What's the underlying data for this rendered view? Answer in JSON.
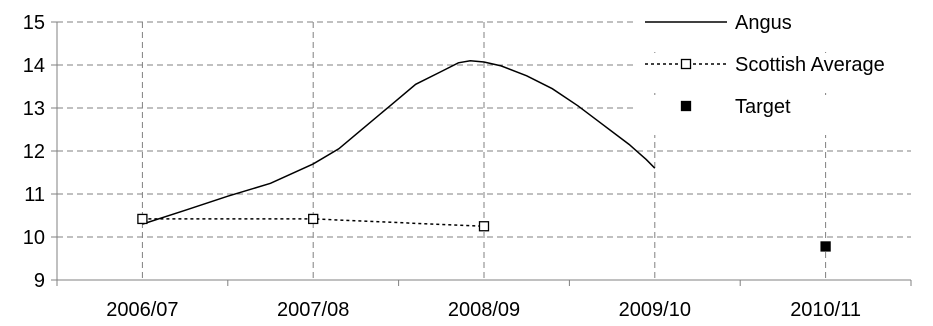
{
  "chart_data": {
    "type": "line",
    "title": "",
    "xlabel": "",
    "ylabel": "",
    "categories": [
      "2006/07",
      "2007/08",
      "2008/09",
      "2009/10",
      "2010/11"
    ],
    "ylim": [
      9,
      15
    ],
    "yticks": [
      9,
      10,
      11,
      12,
      13,
      14,
      15
    ],
    "grid": true,
    "legend_position": "top-right",
    "series": [
      {
        "name": "Angus",
        "style": "solid",
        "marker": "none",
        "color": "#000000",
        "points": [
          {
            "x": 0,
            "y": 10.3
          },
          {
            "x": 0.25,
            "y": 10.62
          },
          {
            "x": 0.5,
            "y": 10.95
          },
          {
            "x": 0.75,
            "y": 11.25
          },
          {
            "x": 1.0,
            "y": 11.7
          },
          {
            "x": 1.15,
            "y": 12.05
          },
          {
            "x": 1.3,
            "y": 12.55
          },
          {
            "x": 1.45,
            "y": 13.05
          },
          {
            "x": 1.6,
            "y": 13.55
          },
          {
            "x": 1.75,
            "y": 13.85
          },
          {
            "x": 1.85,
            "y": 14.05
          },
          {
            "x": 1.92,
            "y": 14.1
          },
          {
            "x": 2.0,
            "y": 14.07
          },
          {
            "x": 2.1,
            "y": 13.98
          },
          {
            "x": 2.25,
            "y": 13.75
          },
          {
            "x": 2.4,
            "y": 13.45
          },
          {
            "x": 2.55,
            "y": 13.05
          },
          {
            "x": 2.7,
            "y": 12.6
          },
          {
            "x": 2.85,
            "y": 12.15
          },
          {
            "x": 2.95,
            "y": 11.8
          },
          {
            "x": 3.0,
            "y": 11.6
          }
        ]
      },
      {
        "name": "Scottish Average",
        "style": "dotted",
        "marker": "hollow-square",
        "color": "#000000",
        "points": [
          {
            "x": 0,
            "y": 10.42
          },
          {
            "x": 1,
            "y": 10.42
          },
          {
            "x": 2,
            "y": 10.25
          }
        ]
      },
      {
        "name": "Target",
        "style": "none",
        "marker": "filled-square",
        "color": "#000000",
        "points": [
          {
            "x": 4,
            "y": 9.78
          }
        ]
      }
    ]
  }
}
